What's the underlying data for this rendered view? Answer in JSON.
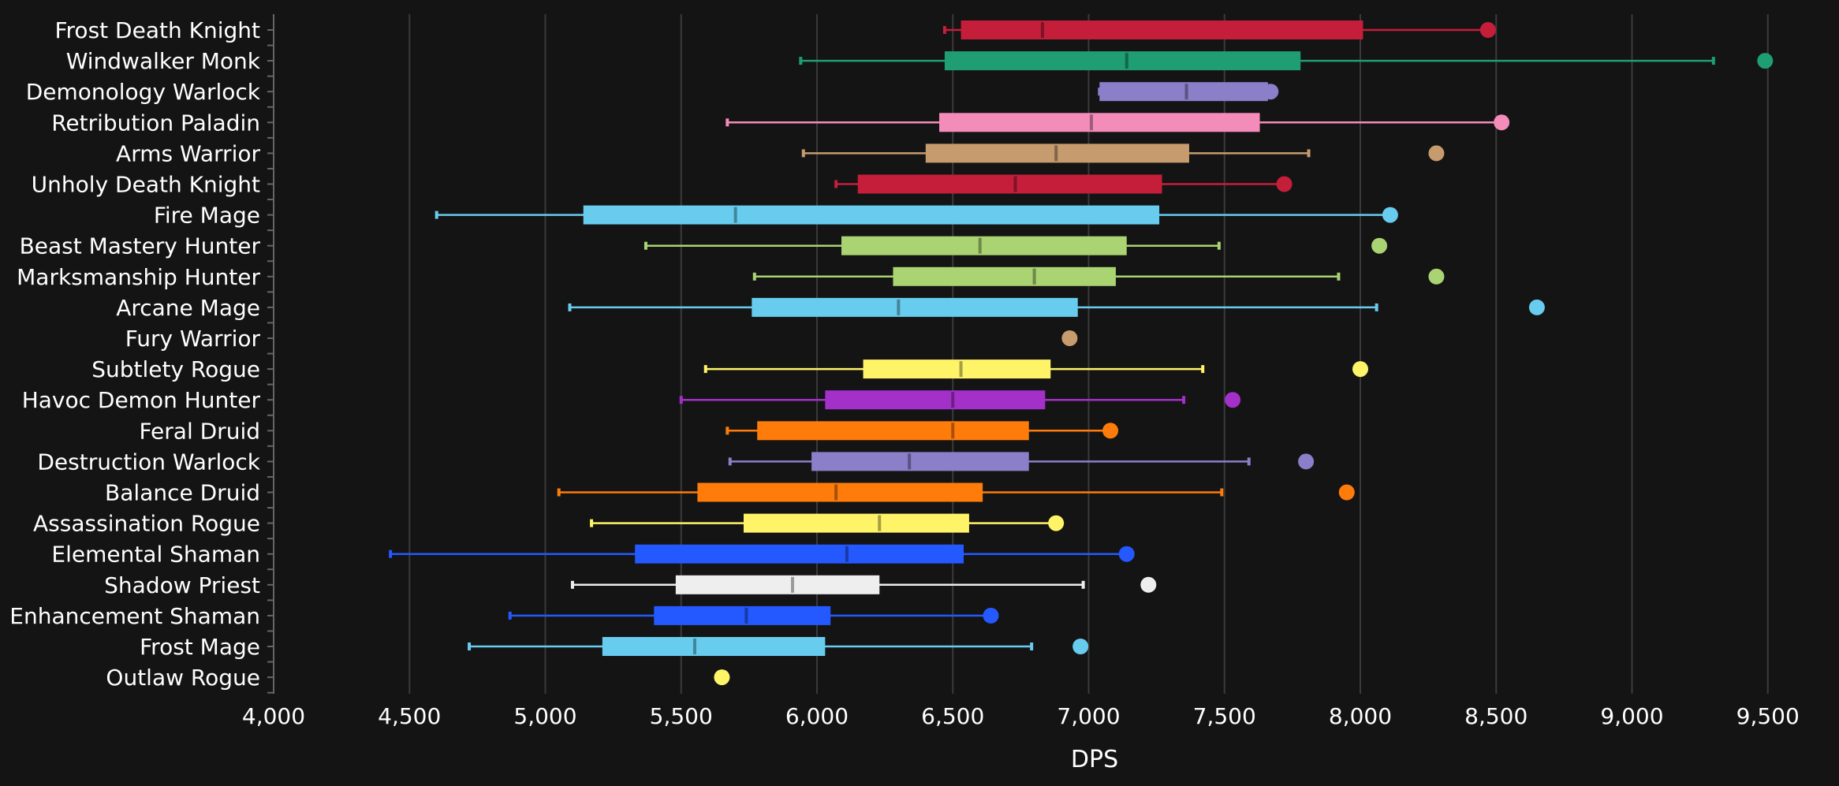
{
  "chart_data": {
    "type": "box",
    "title": "",
    "xlabel": "DPS",
    "ylabel": "",
    "xlim": [
      4000,
      9600
    ],
    "xticks": [
      4000,
      4500,
      5000,
      5500,
      6000,
      6500,
      7000,
      7500,
      8000,
      8500,
      9000,
      9500
    ],
    "xtick_labels": [
      "4,000",
      "4,500",
      "5,000",
      "5,500",
      "6,000",
      "6,500",
      "7,000",
      "7,500",
      "8,000",
      "8,500",
      "9,000",
      "9,500"
    ],
    "grid": true,
    "series": [
      {
        "name": "Frost Death Knight",
        "color": "#c41e3a",
        "min": 6470,
        "q1": 6530,
        "median": 6830,
        "q3": 8010,
        "max": 8470,
        "outlier": 8470
      },
      {
        "name": "Windwalker Monk",
        "color": "#1f9e74",
        "min": 5940,
        "q1": 6470,
        "median": 7140,
        "q3": 7780,
        "max": 9300,
        "outlier": 9490
      },
      {
        "name": "Demonology Warlock",
        "color": "#8c7fc9",
        "min": 7040,
        "q1": 7040,
        "median": 7360,
        "q3": 7660,
        "max": 7660,
        "outlier": 7670
      },
      {
        "name": "Retribution Paladin",
        "color": "#f48cba",
        "min": 5670,
        "q1": 6450,
        "median": 7010,
        "q3": 7630,
        "max": 8510,
        "outlier": 8520
      },
      {
        "name": "Arms Warrior",
        "color": "#c69b6d",
        "min": 5950,
        "q1": 6400,
        "median": 6880,
        "q3": 7370,
        "max": 7810,
        "outlier": 8280
      },
      {
        "name": "Unholy Death Knight",
        "color": "#c41e3a",
        "min": 6070,
        "q1": 6150,
        "median": 6730,
        "q3": 7270,
        "max": 7720,
        "outlier": 7720
      },
      {
        "name": "Fire Mage",
        "color": "#68ccef",
        "min": 4600,
        "q1": 5140,
        "median": 5700,
        "q3": 7260,
        "max": 8110,
        "outlier": 8110
      },
      {
        "name": "Beast Mastery Hunter",
        "color": "#aad372",
        "min": 5370,
        "q1": 6090,
        "median": 6600,
        "q3": 7140,
        "max": 7480,
        "outlier": 8070
      },
      {
        "name": "Marksmanship Hunter",
        "color": "#aad372",
        "min": 5770,
        "q1": 6280,
        "median": 6800,
        "q3": 7100,
        "max": 7920,
        "outlier": 8280
      },
      {
        "name": "Arcane Mage",
        "color": "#68ccef",
        "min": 5090,
        "q1": 5760,
        "median": 6300,
        "q3": 6960,
        "max": 8060,
        "outlier": 8650
      },
      {
        "name": "Fury Warrior",
        "color": "#c69b6d",
        "min": null,
        "q1": null,
        "median": null,
        "q3": null,
        "max": null,
        "outlier": 6930
      },
      {
        "name": "Subtlety Rogue",
        "color": "#fff468",
        "min": 5590,
        "q1": 6170,
        "median": 6530,
        "q3": 6860,
        "max": 7420,
        "outlier": 8000
      },
      {
        "name": "Havoc Demon Hunter",
        "color": "#a330c9",
        "min": 5500,
        "q1": 6030,
        "median": 6500,
        "q3": 6840,
        "max": 7350,
        "outlier": 7530
      },
      {
        "name": "Feral Druid",
        "color": "#ff7c0a",
        "min": 5670,
        "q1": 5780,
        "median": 6500,
        "q3": 6780,
        "max": 7080,
        "outlier": 7080
      },
      {
        "name": "Destruction Warlock",
        "color": "#8c7fc9",
        "min": 5680,
        "q1": 5980,
        "median": 6340,
        "q3": 6780,
        "max": 7590,
        "outlier": 7800
      },
      {
        "name": "Balance Druid",
        "color": "#ff7c0a",
        "min": 5050,
        "q1": 5560,
        "median": 6070,
        "q3": 6610,
        "max": 7490,
        "outlier": 7950
      },
      {
        "name": "Assassination Rogue",
        "color": "#fff468",
        "min": 5170,
        "q1": 5730,
        "median": 6230,
        "q3": 6560,
        "max": 6880,
        "outlier": 6880
      },
      {
        "name": "Elemental Shaman",
        "color": "#2459ff",
        "min": 4430,
        "q1": 5330,
        "median": 6110,
        "q3": 6540,
        "max": 7140,
        "outlier": 7140
      },
      {
        "name": "Shadow Priest",
        "color": "#eeeeee",
        "min": 5100,
        "q1": 5480,
        "median": 5910,
        "q3": 6230,
        "max": 6980,
        "outlier": 7220
      },
      {
        "name": "Enhancement Shaman",
        "color": "#2459ff",
        "min": 4870,
        "q1": 5400,
        "median": 5740,
        "q3": 6050,
        "max": 6640,
        "outlier": 6640
      },
      {
        "name": "Frost Mage",
        "color": "#68ccef",
        "min": 4720,
        "q1": 5210,
        "median": 5550,
        "q3": 6030,
        "max": 6790,
        "outlier": 6970
      },
      {
        "name": "Outlaw Rogue",
        "color": "#fff468",
        "min": null,
        "q1": null,
        "median": null,
        "q3": null,
        "max": null,
        "outlier": 5650
      }
    ]
  }
}
